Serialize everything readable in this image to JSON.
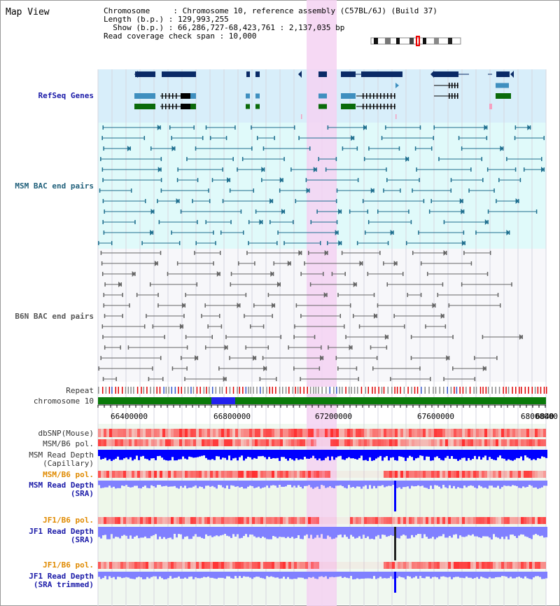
{
  "page": {
    "title": "Map View",
    "info": {
      "chromosome": "Chromosome     : Chromosome 10, reference assembly (C57BL/6J) (Build 37)",
      "length": "Length (b.p.) : 129,993,255",
      "show": "  Show (b.p.) : 66,286,727-68,423,761 : 2,137,035 bp",
      "coverage": "Read coverage check span : 10,000"
    }
  },
  "tracks": {
    "refseq": "RefSeq Genes",
    "msm_bac": "MSM BAC end pairs",
    "b6n_bac": "B6N BAC end pairs",
    "repeat": "Repeat",
    "chromosome": "chromosome 10",
    "dbsnp": "dbSNP(Mouse)",
    "msm_b6_pol": "MSM/B6 pol.",
    "msm_depth_cap_1": "MSM Read Depth",
    "msm_depth_cap_2": "(Capillary)",
    "msm_b6_pol2": "MSM/B6 pol.",
    "msm_depth_sra_1": "MSM Read Depth",
    "msm_depth_sra_2": "(SRA)",
    "jf1_b6_pol": "JF1/B6 pol.",
    "jf1_depth_sra_1": "JF1 Read Depth",
    "jf1_depth_sra_2": "(SRA)",
    "jf1_b6_pol2": "JF1/B6 pol.",
    "jf1_depth_trim_1": "JF1 Read Depth",
    "jf1_depth_trim_2": "(SRA trimmed)"
  },
  "axis": {
    "ticks": [
      "66400000",
      "66800000",
      "67200000",
      "67600000",
      "68000000",
      "6840"
    ]
  },
  "colors": {
    "refseq_bg": "#d8eefa",
    "bac_bg": "#e0fafa",
    "highlight": "#f5d2f2",
    "gene_dark": "#0a2a66",
    "gene_mid": "#3f8fbf",
    "gene_green": "#0a6a0a",
    "chromosome_green": "#0a7a0a",
    "depth_blue": "#0000ff",
    "depth_light": "#8080ff",
    "pol_red": "#ff3030",
    "label_orange": "#e08a00"
  }
}
